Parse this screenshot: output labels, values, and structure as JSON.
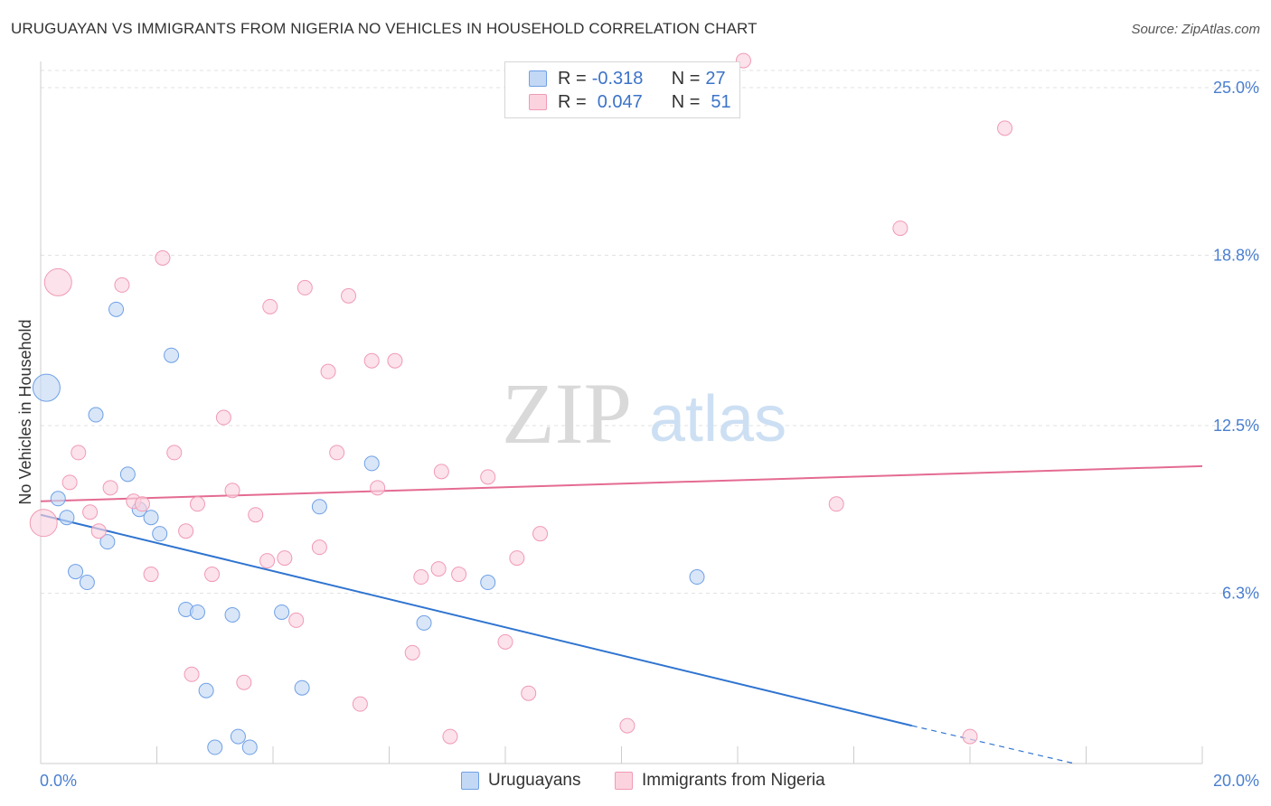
{
  "title": "URUGUAYAN VS IMMIGRANTS FROM NIGERIA NO VEHICLES IN HOUSEHOLD CORRELATION CHART",
  "source": "Source: ZipAtlas.com",
  "watermark": {
    "zip": "ZIP",
    "atlas": "atlas"
  },
  "legend": {
    "r_label": "R =",
    "n_label": "N =",
    "rows": [
      {
        "r": "-0.318",
        "n": "27"
      },
      {
        "r": "0.047",
        "n": "51"
      }
    ]
  },
  "bottom_legend": [
    "Uruguayans",
    "Immigrants from Nigeria"
  ],
  "chart_data": {
    "type": "scatter",
    "title": "URUGUAYAN VS IMMIGRANTS FROM NIGERIA NO VEHICLES IN HOUSEHOLD CORRELATION CHART",
    "xlabel": "",
    "ylabel": "No Vehicles in Household",
    "xlim": [
      0,
      20
    ],
    "ylim": [
      0,
      25
    ],
    "x_tick_labels": [
      "0.0%",
      "20.0%"
    ],
    "y_ticks": [
      6.3,
      12.5,
      18.8,
      25.0
    ],
    "y_tick_labels": [
      "6.3%",
      "12.5%",
      "18.8%",
      "25.0%"
    ],
    "grid": true,
    "colors": {
      "uruguayans": "#6fa0e6",
      "nigeria": "#f09ab5",
      "uru_line": "#2f74d0",
      "nig_line": "#e46b92",
      "tick": "#4a7fd0"
    },
    "series": [
      {
        "name": "Uruguayans",
        "points": [
          {
            "x": 0.1,
            "y": 13.9,
            "big": 1
          },
          {
            "x": 0.3,
            "y": 9.8
          },
          {
            "x": 0.45,
            "y": 9.1
          },
          {
            "x": 0.6,
            "y": 7.1
          },
          {
            "x": 0.8,
            "y": 6.7
          },
          {
            "x": 0.95,
            "y": 12.9
          },
          {
            "x": 1.15,
            "y": 8.2
          },
          {
            "x": 1.3,
            "y": 16.8
          },
          {
            "x": 1.5,
            "y": 10.7
          },
          {
            "x": 1.7,
            "y": 9.4
          },
          {
            "x": 1.9,
            "y": 9.1
          },
          {
            "x": 2.05,
            "y": 8.5
          },
          {
            "x": 2.25,
            "y": 15.1
          },
          {
            "x": 2.5,
            "y": 5.7
          },
          {
            "x": 2.7,
            "y": 5.6
          },
          {
            "x": 2.85,
            "y": 2.7
          },
          {
            "x": 3.0,
            "y": 0.6
          },
          {
            "x": 3.3,
            "y": 5.5
          },
          {
            "x": 3.4,
            "y": 1.0
          },
          {
            "x": 3.6,
            "y": 0.6
          },
          {
            "x": 4.15,
            "y": 5.6
          },
          {
            "x": 4.5,
            "y": 2.8
          },
          {
            "x": 4.8,
            "y": 9.5
          },
          {
            "x": 5.7,
            "y": 11.1
          },
          {
            "x": 6.6,
            "y": 5.2
          },
          {
            "x": 7.7,
            "y": 6.7
          },
          {
            "x": 11.3,
            "y": 6.9
          }
        ]
      },
      {
        "name": "Immigrants from Nigeria",
        "points": [
          {
            "x": 0.05,
            "y": 8.9,
            "big": 1
          },
          {
            "x": 0.3,
            "y": 17.8,
            "big": 1
          },
          {
            "x": 0.5,
            "y": 10.4
          },
          {
            "x": 0.65,
            "y": 11.5
          },
          {
            "x": 0.85,
            "y": 9.3
          },
          {
            "x": 1.0,
            "y": 8.6
          },
          {
            "x": 1.2,
            "y": 10.2
          },
          {
            "x": 1.4,
            "y": 17.7
          },
          {
            "x": 1.6,
            "y": 9.7
          },
          {
            "x": 1.75,
            "y": 9.6
          },
          {
            "x": 1.9,
            "y": 7.0
          },
          {
            "x": 2.1,
            "y": 18.7
          },
          {
            "x": 2.3,
            "y": 11.5
          },
          {
            "x": 2.5,
            "y": 8.6
          },
          {
            "x": 2.6,
            "y": 3.3
          },
          {
            "x": 2.7,
            "y": 9.6
          },
          {
            "x": 2.95,
            "y": 7.0
          },
          {
            "x": 3.15,
            "y": 12.8
          },
          {
            "x": 3.3,
            "y": 10.1
          },
          {
            "x": 3.5,
            "y": 3.0
          },
          {
            "x": 3.7,
            "y": 9.2
          },
          {
            "x": 3.9,
            "y": 7.5
          },
          {
            "x": 3.95,
            "y": 16.9
          },
          {
            "x": 4.2,
            "y": 7.6
          },
          {
            "x": 4.4,
            "y": 5.3
          },
          {
            "x": 4.55,
            "y": 17.6
          },
          {
            "x": 4.8,
            "y": 8.0
          },
          {
            "x": 4.95,
            "y": 14.5
          },
          {
            "x": 5.1,
            "y": 11.5
          },
          {
            "x": 5.3,
            "y": 17.3
          },
          {
            "x": 5.5,
            "y": 2.2
          },
          {
            "x": 5.7,
            "y": 14.9
          },
          {
            "x": 5.8,
            "y": 10.2
          },
          {
            "x": 6.1,
            "y": 14.9
          },
          {
            "x": 6.4,
            "y": 4.1
          },
          {
            "x": 6.55,
            "y": 6.9
          },
          {
            "x": 6.85,
            "y": 7.2
          },
          {
            "x": 6.9,
            "y": 10.8
          },
          {
            "x": 7.05,
            "y": 1.0
          },
          {
            "x": 7.2,
            "y": 7.0
          },
          {
            "x": 7.7,
            "y": 10.6
          },
          {
            "x": 8.0,
            "y": 4.5
          },
          {
            "x": 8.2,
            "y": 7.6
          },
          {
            "x": 8.4,
            "y": 2.6
          },
          {
            "x": 8.6,
            "y": 8.5
          },
          {
            "x": 10.1,
            "y": 1.4
          },
          {
            "x": 12.1,
            "y": 26.0
          },
          {
            "x": 13.7,
            "y": 9.6
          },
          {
            "x": 14.8,
            "y": 19.8
          },
          {
            "x": 16.0,
            "y": 1.0
          },
          {
            "x": 16.6,
            "y": 23.5
          }
        ]
      }
    ],
    "trend_lines": [
      {
        "name": "Uruguayans",
        "x0": 0,
        "y0": 9.2,
        "x1": 15.0,
        "y1": 1.4,
        "dash_to_x": 17.8,
        "dash_to_y": 0
      },
      {
        "name": "Immigrants from Nigeria",
        "x0": 0,
        "y0": 9.7,
        "x1": 20.0,
        "y1": 11.0
      }
    ]
  }
}
